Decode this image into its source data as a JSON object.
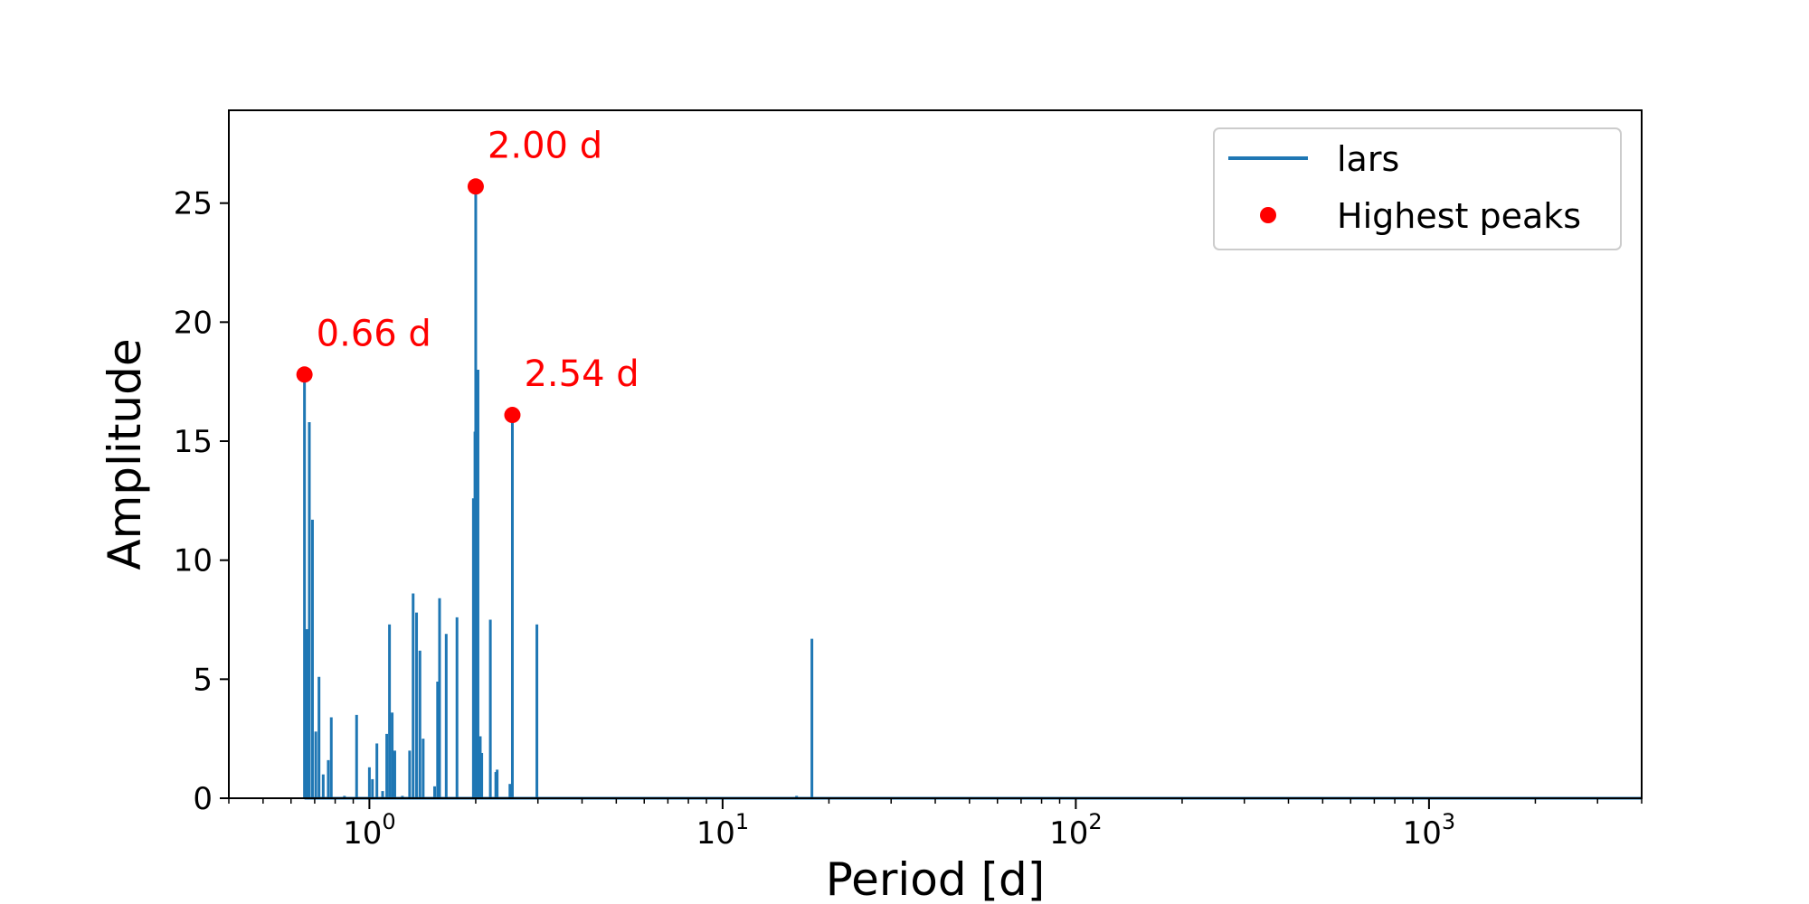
{
  "chart_data": {
    "type": "line",
    "title": "",
    "xlabel": "Period [d]",
    "ylabel": "Amplitude",
    "xscale": "log",
    "xlim": [
      0.4,
      4000
    ],
    "ylim": [
      0,
      28.9
    ],
    "x_ticks": [
      {
        "base": "10",
        "exp": "0",
        "value": 1
      },
      {
        "base": "10",
        "exp": "1",
        "value": 10
      },
      {
        "base": "10",
        "exp": "2",
        "value": 100
      },
      {
        "base": "10",
        "exp": "3",
        "value": 1000
      }
    ],
    "y_ticks": [
      {
        "label": "0",
        "value": 0
      },
      {
        "label": "5",
        "value": 5
      },
      {
        "label": "10",
        "value": 10
      },
      {
        "label": "15",
        "value": 15
      },
      {
        "label": "20",
        "value": 20
      },
      {
        "label": "25",
        "value": 25
      }
    ],
    "grid": false,
    "legend_position": "top-right",
    "colors": {
      "line": "#1f77b4",
      "peaks": "#ff0000",
      "axes": "#000000",
      "legend_border": "#cccccc"
    },
    "series": [
      {
        "name": "lars",
        "style": "line",
        "spikes": [
          [
            0.655,
            17.8
          ],
          [
            0.665,
            7.1
          ],
          [
            0.676,
            15.8
          ],
          [
            0.69,
            11.7
          ],
          [
            0.705,
            2.8
          ],
          [
            0.72,
            5.1
          ],
          [
            0.74,
            1.0
          ],
          [
            0.765,
            1.6
          ],
          [
            0.78,
            3.4
          ],
          [
            0.85,
            0.1
          ],
          [
            0.92,
            3.5
          ],
          [
            1.0,
            1.3
          ],
          [
            1.02,
            0.8
          ],
          [
            1.05,
            2.3
          ],
          [
            1.09,
            0.3
          ],
          [
            1.12,
            2.7
          ],
          [
            1.14,
            7.3
          ],
          [
            1.16,
            3.6
          ],
          [
            1.18,
            2.0
          ],
          [
            1.24,
            0.1
          ],
          [
            1.3,
            2.0
          ],
          [
            1.33,
            8.6
          ],
          [
            1.36,
            7.8
          ],
          [
            1.39,
            6.2
          ],
          [
            1.42,
            2.5
          ],
          [
            1.53,
            0.5
          ],
          [
            1.56,
            4.9
          ],
          [
            1.58,
            8.4
          ],
          [
            1.65,
            6.9
          ],
          [
            1.77,
            7.6
          ],
          [
            1.97,
            12.6
          ],
          [
            1.99,
            15.4
          ],
          [
            2.0,
            25.7
          ],
          [
            2.03,
            18.0
          ],
          [
            2.06,
            2.6
          ],
          [
            2.08,
            1.9
          ],
          [
            2.2,
            7.5
          ],
          [
            2.28,
            1.1
          ],
          [
            2.3,
            1.2
          ],
          [
            2.5,
            0.6
          ],
          [
            2.54,
            16.1
          ],
          [
            2.98,
            7.3
          ],
          [
            16.2,
            0.1
          ],
          [
            17.9,
            6.7
          ]
        ]
      },
      {
        "name": "Highest peaks",
        "style": "scatter",
        "points": [
          {
            "x": 0.655,
            "y": 17.8,
            "label": "0.66 d"
          },
          {
            "x": 2.0,
            "y": 25.7,
            "label": "2.00 d"
          },
          {
            "x": 2.54,
            "y": 16.1,
            "label": "2.54 d"
          }
        ]
      }
    ]
  }
}
